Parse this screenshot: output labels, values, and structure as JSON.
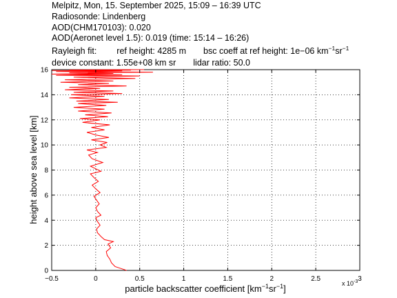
{
  "header": {
    "line1": "Melpitz, Mon, 15. September 2025, 15:09 – 16:39 UTC",
    "line2": "Radiosonde: Lindenberg",
    "line3": "AOD(CHM170103): 0.020",
    "line4": "AOD(Aeronet level 1.5): 0.019   (time: 15:14 – 16:26)",
    "rayleigh_label": "Rayleigh fit:",
    "ref_height": "ref height: 4285 m",
    "bsc_coeff_prefix": "bsc coeff at ref height: 1e−06 km",
    "sup_minus1_a": "−1",
    "sr": "sr",
    "sup_minus1_b": "−1",
    "device_constant": "device constant: 1.55e+08 km sr",
    "lidar_ratio": "lidar ratio: 50.0"
  },
  "chart_data": {
    "type": "line",
    "xlabel_main": "particle backscatter coefficient [km",
    "xlabel_sup1": "−1",
    "xlabel_mid": "sr",
    "xlabel_sup2": "−1",
    "xlabel_end": "]",
    "ylabel": "height above sea level [km]",
    "x_scale_label": "x 10",
    "x_scale_exp": "-3",
    "xlim": [
      -0.5,
      3
    ],
    "ylim": [
      0,
      16
    ],
    "x_ticks": [
      -0.5,
      0,
      0.5,
      1,
      1.5,
      2,
      2.5,
      3
    ],
    "x_tick_labels": [
      "−0.5",
      "0",
      "0.5",
      "1",
      "1.5",
      "2",
      "2.5",
      "3"
    ],
    "y_ticks": [
      0,
      2,
      4,
      6,
      8,
      10,
      12,
      14,
      16
    ],
    "y_tick_labels": [
      "0",
      "2",
      "4",
      "6",
      "8",
      "10",
      "12",
      "14",
      "16"
    ],
    "grid": true,
    "line_color": "#ff0000",
    "series": [
      {
        "x": [
          0.35,
          0.3,
          0.22,
          0.18,
          0.16,
          0.13,
          0.12,
          0.17,
          0.14,
          0.2,
          0.1,
          0.06,
          0.02,
          0.01,
          0.05,
          0.02,
          0.0,
          0.06,
          0.02,
          0.0,
          0.04,
          0.01,
          -0.02,
          0.05,
          0.0,
          -0.04,
          0.03,
          -0.02,
          -0.06,
          0.06,
          0.0,
          -0.06,
          0.08,
          -0.04,
          -0.08,
          0.02,
          -0.1,
          0.12,
          0.05,
          0.13,
          -0.05,
          0.15,
          0.0,
          -0.1,
          0.1,
          -0.05,
          0.16,
          -0.15,
          0.05,
          -0.18,
          0.14,
          -0.12,
          0.18,
          -0.2,
          0.1,
          -0.25,
          0.12,
          -0.2,
          0.25,
          -0.22,
          0.15,
          -0.3,
          0.1,
          -0.28,
          0.3,
          -0.25,
          0.2,
          -0.35,
          0.05,
          -0.3,
          0.35,
          -0.2,
          0.15,
          -0.4,
          0.2,
          -0.35,
          0.45,
          -0.25,
          0.5,
          -0.45,
          0.3,
          -0.5,
          0.2,
          -0.3,
          0.65,
          -0.45,
          0.3,
          -0.5,
          0.4,
          -0.3,
          0.55
        ],
        "y": [
          0.0,
          0.12,
          0.3,
          0.6,
          0.9,
          1.2,
          1.5,
          1.8,
          2.1,
          2.3,
          2.45,
          2.7,
          3.0,
          3.3,
          3.6,
          3.9,
          4.2,
          4.4,
          4.7,
          5.0,
          5.3,
          5.6,
          5.9,
          6.2,
          6.5,
          6.8,
          7.1,
          7.4,
          7.7,
          7.9,
          8.1,
          8.3,
          8.6,
          8.9,
          9.2,
          9.4,
          9.6,
          9.8,
          10.0,
          10.2,
          10.4,
          10.6,
          10.8,
          11.0,
          11.2,
          11.4,
          11.6,
          11.8,
          12.0,
          12.1,
          12.25,
          12.4,
          12.55,
          12.7,
          12.85,
          13.0,
          13.15,
          13.3,
          13.4,
          13.5,
          13.62,
          13.75,
          13.88,
          14.0,
          14.1,
          14.2,
          14.3,
          14.4,
          14.5,
          14.6,
          14.7,
          14.8,
          14.9,
          15.0,
          15.1,
          15.2,
          15.3,
          15.4,
          15.5,
          15.55,
          15.6,
          15.65,
          15.7,
          15.75,
          15.8,
          15.85,
          15.9,
          15.93,
          15.96,
          15.98,
          16.0
        ]
      }
    ]
  }
}
